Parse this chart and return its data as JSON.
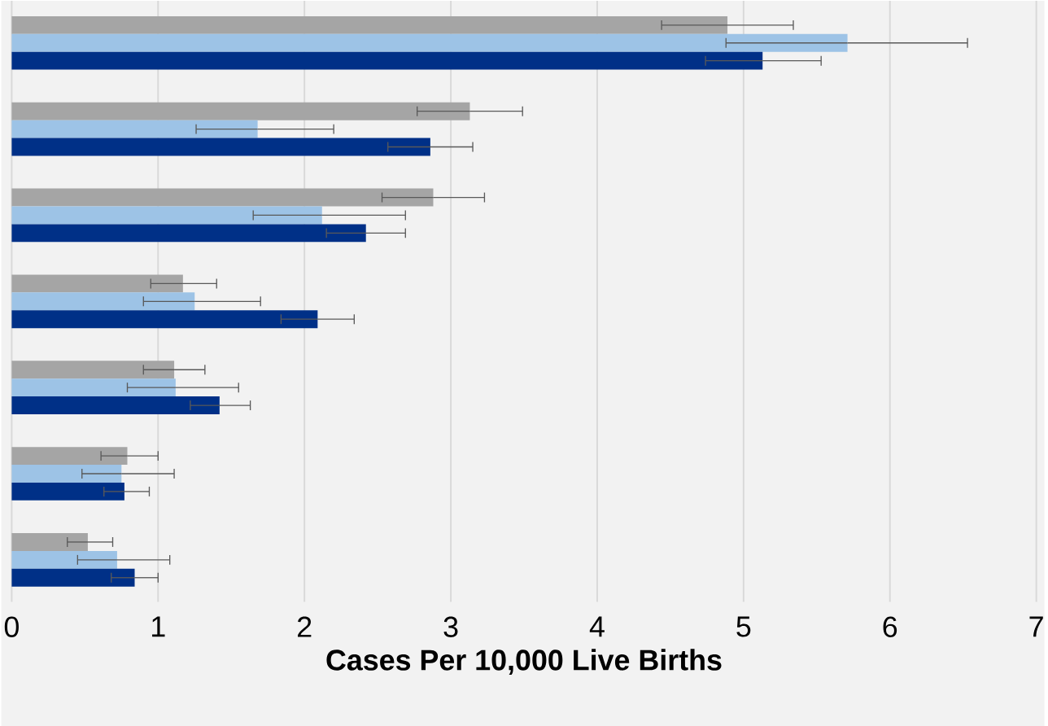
{
  "chart_data": {
    "type": "bar",
    "orientation": "horizontal",
    "xlabel": "Cases Per 10,000 Live Births",
    "categories": [
      null,
      null,
      null,
      null,
      null,
      null,
      null
    ],
    "series": [
      {
        "color": "#a5a5a5",
        "values": [
          4.89,
          3.13,
          2.88,
          1.17,
          1.11,
          0.79,
          0.52
        ],
        "errors": [
          [
            4.44,
            5.34
          ],
          [
            2.77,
            3.49
          ],
          [
            2.53,
            3.23
          ],
          [
            0.95,
            1.4
          ],
          [
            0.9,
            1.32
          ],
          [
            0.61,
            1.0
          ],
          [
            0.38,
            0.69
          ]
        ]
      },
      {
        "color": "#9dc3e6",
        "values": [
          5.71,
          1.68,
          2.12,
          1.25,
          1.12,
          0.75,
          0.72
        ],
        "errors": [
          [
            4.88,
            6.53
          ],
          [
            1.26,
            2.2
          ],
          [
            1.65,
            2.69
          ],
          [
            0.9,
            1.7
          ],
          [
            0.79,
            1.55
          ],
          [
            0.48,
            1.11
          ],
          [
            0.45,
            1.08
          ]
        ]
      },
      {
        "color": "#003087",
        "values": [
          5.13,
          2.86,
          2.42,
          2.09,
          1.42,
          0.77,
          0.84
        ],
        "errors": [
          [
            4.74,
            5.53
          ],
          [
            2.57,
            3.15
          ],
          [
            2.15,
            2.69
          ],
          [
            1.84,
            2.34
          ],
          [
            1.22,
            1.63
          ],
          [
            0.63,
            0.94
          ],
          [
            0.68,
            1.0
          ]
        ]
      }
    ],
    "xlim": [
      0,
      7
    ],
    "xticks": [
      0,
      1,
      2,
      3,
      4,
      5,
      6,
      7
    ],
    "grid": "x"
  }
}
